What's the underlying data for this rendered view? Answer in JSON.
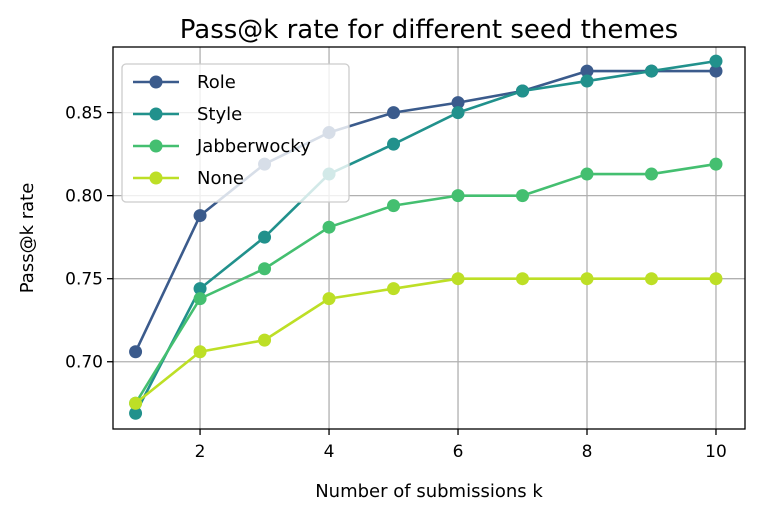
{
  "chart_data": {
    "type": "line",
    "title": "Pass@k rate for different seed themes",
    "xlabel": "Number of submissions k",
    "ylabel": "Pass@k rate",
    "x": [
      1,
      2,
      3,
      4,
      5,
      6,
      7,
      8,
      9,
      10
    ],
    "xlim": [
      0.65,
      10.45
    ],
    "ylim": [
      0.6595,
      0.8895
    ],
    "xticks": [
      2,
      4,
      6,
      8,
      10
    ],
    "xtick_labels": [
      "2",
      "4",
      "6",
      "8",
      "10"
    ],
    "yticks": [
      0.7,
      0.75,
      0.8,
      0.85
    ],
    "ytick_labels": [
      "0.70",
      "0.75",
      "0.80",
      "0.85"
    ],
    "grid": true,
    "legend_position": "top-left",
    "series": [
      {
        "name": "Role",
        "color": "#3b5b8c",
        "values": [
          0.706,
          0.788,
          0.819,
          0.838,
          0.85,
          0.856,
          0.863,
          0.875,
          0.875,
          0.875
        ]
      },
      {
        "name": "Style",
        "color": "#21918c",
        "values": [
          0.669,
          0.744,
          0.775,
          0.813,
          0.831,
          0.85,
          0.863,
          0.869,
          0.875,
          0.881
        ]
      },
      {
        "name": "Jabberwocky",
        "color": "#44bf70",
        "values": [
          0.675,
          0.738,
          0.756,
          0.781,
          0.794,
          0.8,
          0.8,
          0.813,
          0.813,
          0.819
        ]
      },
      {
        "name": "None",
        "color": "#bddf26",
        "values": [
          0.675,
          0.706,
          0.713,
          0.738,
          0.744,
          0.75,
          0.75,
          0.75,
          0.75,
          0.75
        ]
      }
    ]
  }
}
